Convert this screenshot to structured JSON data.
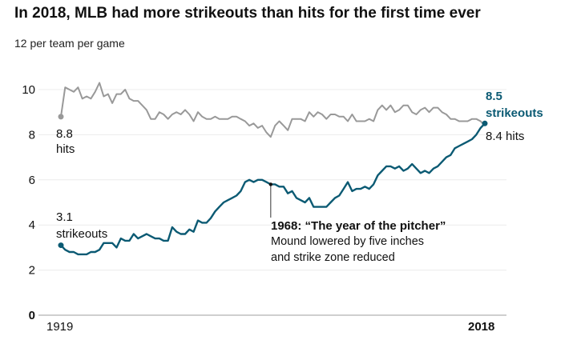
{
  "chart_data": {
    "type": "line",
    "title": "In 2018, MLB had more strikeouts than hits for the first time ever",
    "ylabel": "per team per game",
    "ylim": [
      0,
      12
    ],
    "yticks": [
      "0",
      "2",
      "4",
      "6",
      "8",
      "10",
      "12"
    ],
    "xlim": [
      1919,
      2018
    ],
    "xtick_labels": [
      "1919",
      "2018"
    ],
    "grid": true,
    "x_start": 1919,
    "series": [
      {
        "name": "hits",
        "color": "#999999",
        "values": [
          8.8,
          10.1,
          10.0,
          9.9,
          10.1,
          9.6,
          9.7,
          9.6,
          9.9,
          10.3,
          9.7,
          9.8,
          9.4,
          9.8,
          9.8,
          10.0,
          9.6,
          9.5,
          9.5,
          9.3,
          9.1,
          8.7,
          8.7,
          9.0,
          8.9,
          8.7,
          8.9,
          9.0,
          8.9,
          9.1,
          8.9,
          8.6,
          9.0,
          8.8,
          8.7,
          8.7,
          8.8,
          8.7,
          8.7,
          8.7,
          8.8,
          8.8,
          8.7,
          8.6,
          8.4,
          8.5,
          8.3,
          8.4,
          8.1,
          7.9,
          8.4,
          8.6,
          8.4,
          8.2,
          8.7,
          8.7,
          8.7,
          8.6,
          9.0,
          8.8,
          9.0,
          8.9,
          8.7,
          8.9,
          8.9,
          8.8,
          8.8,
          8.6,
          8.9,
          8.6,
          8.6,
          8.6,
          8.7,
          8.6,
          9.1,
          9.3,
          9.1,
          9.3,
          9.0,
          9.1,
          9.3,
          9.3,
          9.0,
          8.9,
          9.1,
          9.2,
          9.0,
          9.2,
          9.2,
          9.0,
          8.9,
          8.7,
          8.7,
          8.6,
          8.6,
          8.6,
          8.7,
          8.7,
          8.6,
          8.4
        ]
      },
      {
        "name": "strikeouts",
        "color": "#0b5a73",
        "values": [
          3.1,
          2.9,
          2.8,
          2.8,
          2.7,
          2.7,
          2.7,
          2.8,
          2.8,
          2.9,
          3.2,
          3.2,
          3.2,
          3.0,
          3.4,
          3.3,
          3.3,
          3.6,
          3.4,
          3.5,
          3.6,
          3.5,
          3.4,
          3.4,
          3.3,
          3.3,
          3.9,
          3.7,
          3.6,
          3.6,
          3.8,
          3.7,
          4.2,
          4.1,
          4.1,
          4.3,
          4.6,
          4.8,
          5.0,
          5.1,
          5.2,
          5.3,
          5.5,
          5.9,
          6.0,
          5.9,
          6.0,
          6.0,
          5.9,
          5.8,
          5.8,
          5.7,
          5.7,
          5.4,
          5.5,
          5.2,
          5.1,
          5.0,
          5.2,
          4.8,
          4.8,
          4.8,
          4.8,
          5.0,
          5.2,
          5.3,
          5.6,
          5.9,
          5.5,
          5.6,
          5.6,
          5.7,
          5.6,
          5.8,
          6.2,
          6.4,
          6.6,
          6.6,
          6.5,
          6.6,
          6.4,
          6.5,
          6.7,
          6.5,
          6.3,
          6.4,
          6.3,
          6.5,
          6.6,
          6.8,
          7.0,
          7.1,
          7.4,
          7.5,
          7.6,
          7.7,
          7.8,
          8.0,
          8.3,
          8.5
        ]
      }
    ],
    "annotations": {
      "hits_start_value": "8.8",
      "hits_start_label": "hits",
      "so_start_value": "3.1",
      "so_start_label": "strikeouts",
      "so_end_value": "8.5",
      "so_end_label": "strikeouts",
      "hits_end": "8.4 hits",
      "event_year": 1968,
      "event_title": "1968: “The year of the pitcher”",
      "event_line1": "Mound lowered by five inches",
      "event_line2": "and strike zone reduced"
    }
  }
}
